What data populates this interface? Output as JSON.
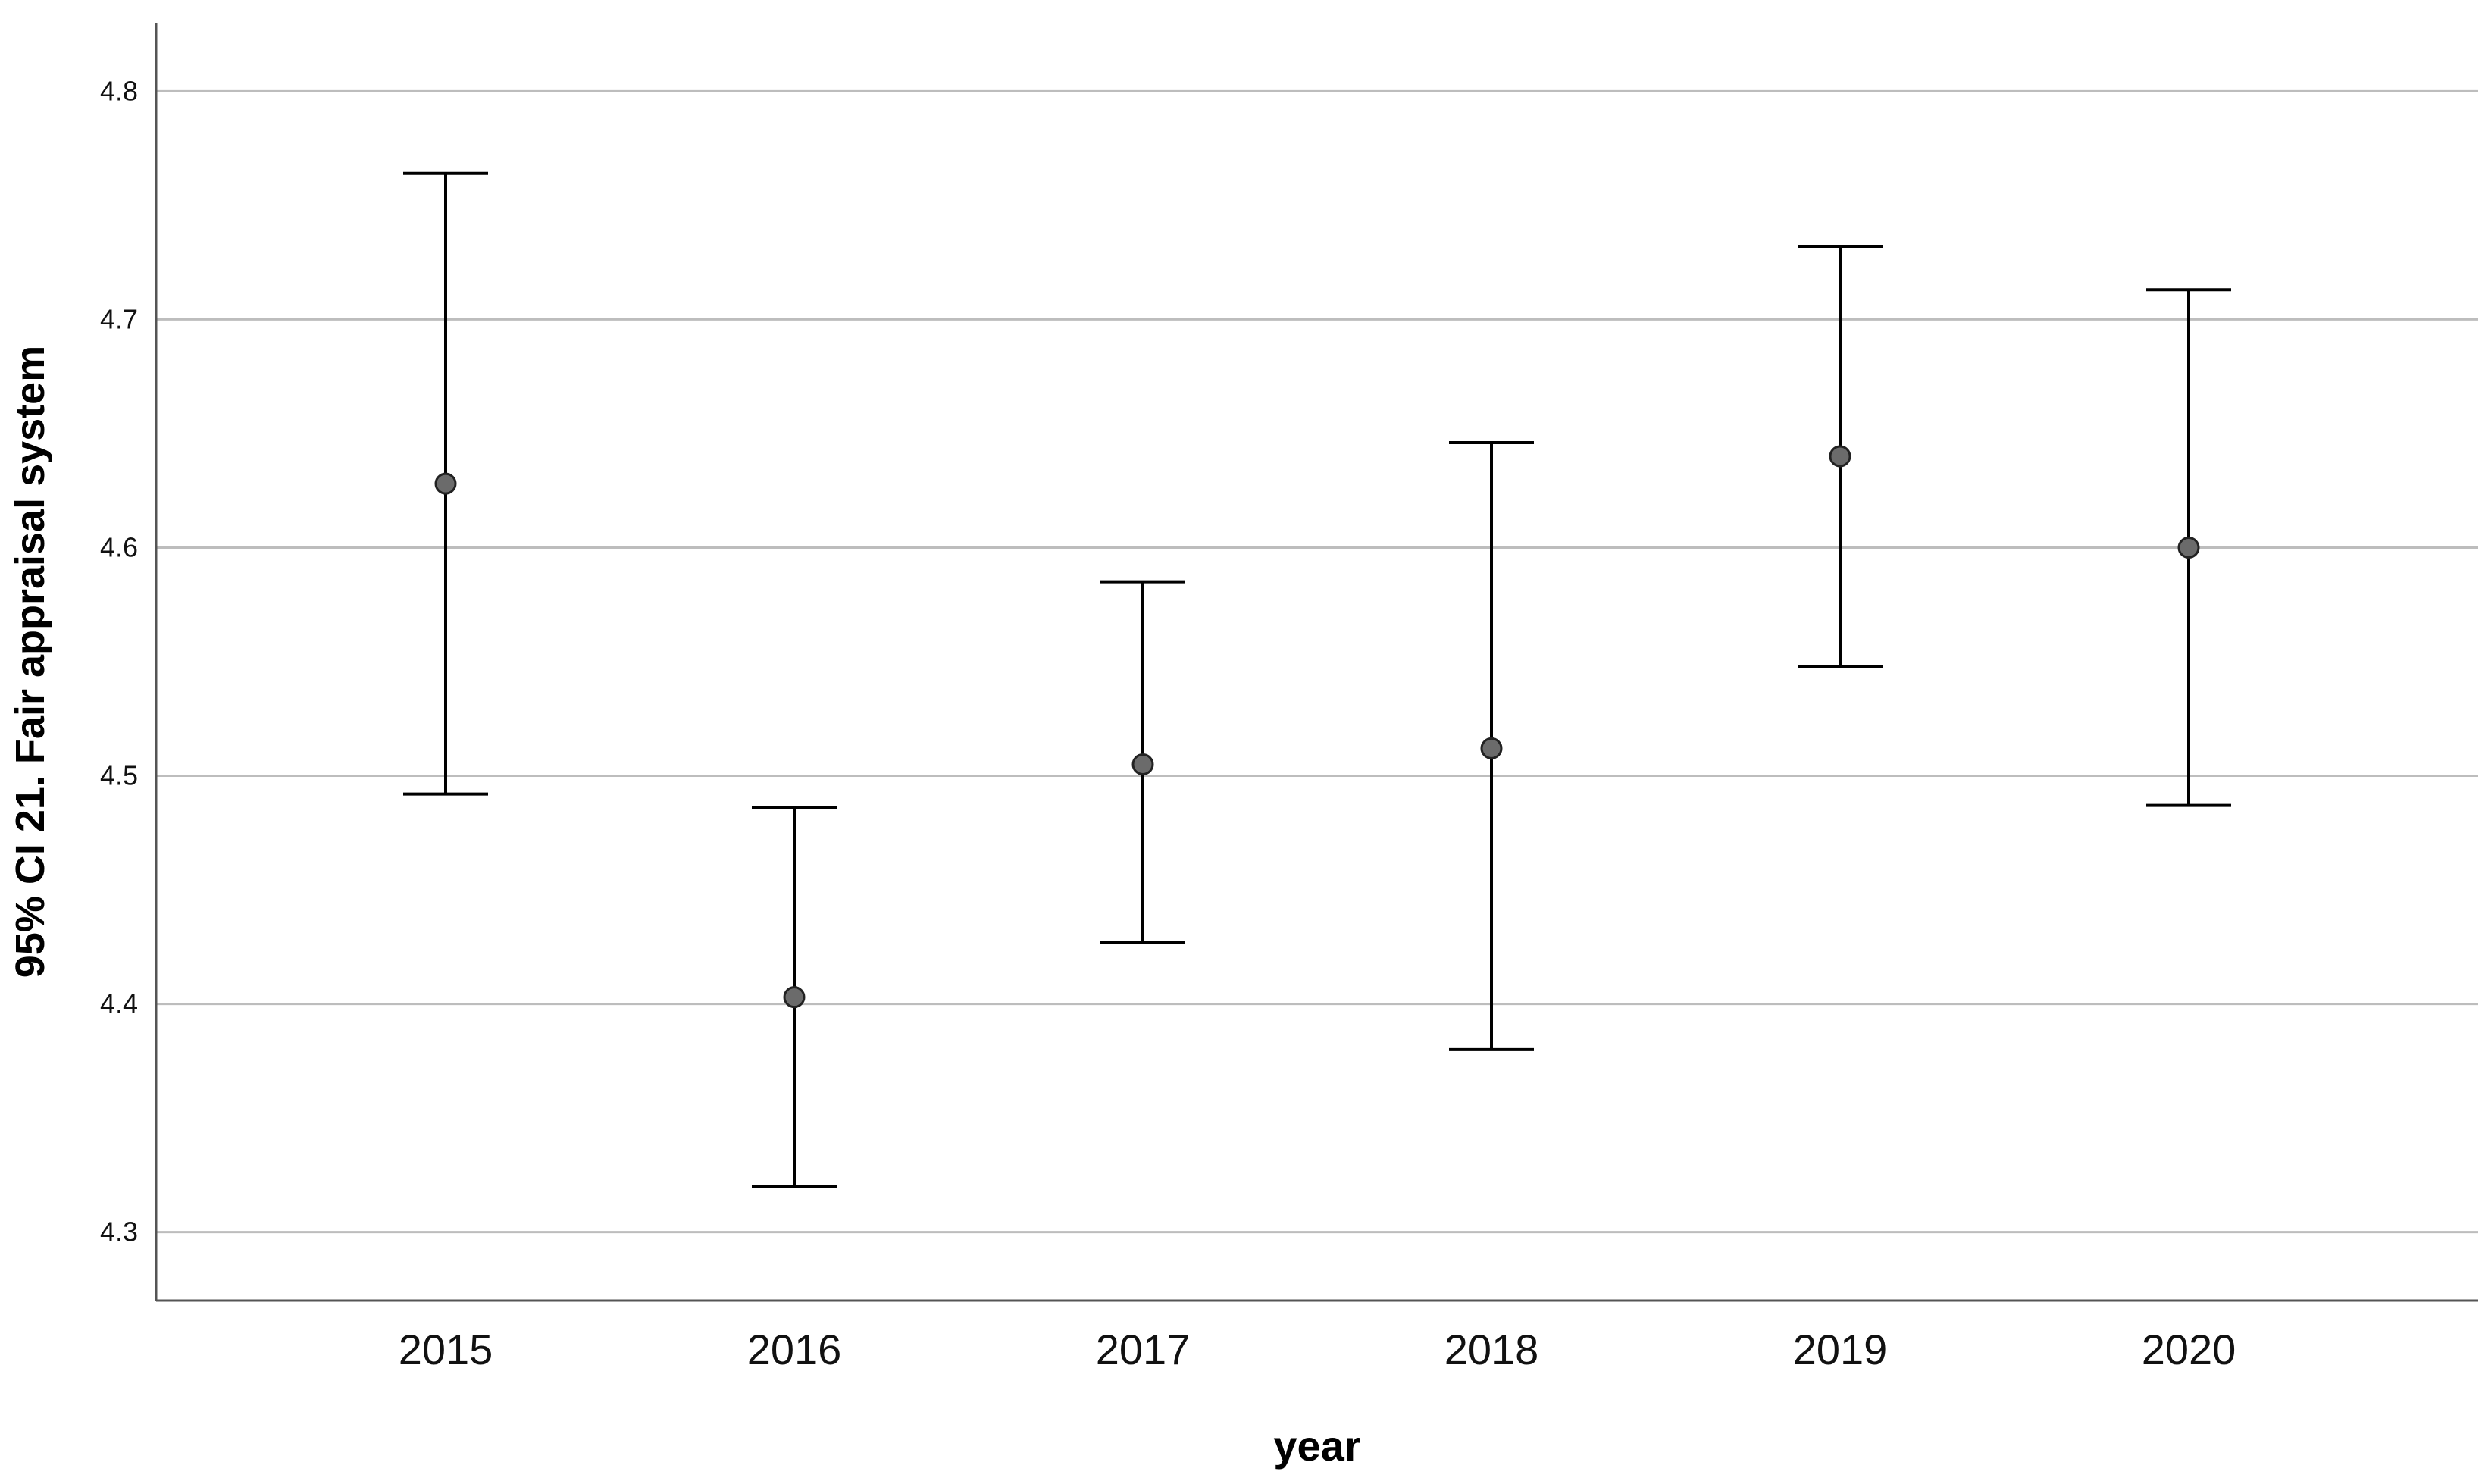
{
  "chart_data": {
    "type": "errorbar",
    "xlabel": "year",
    "ylabel": "95% CI 21. Fair appraisal system",
    "ylim": [
      4.27,
      4.83
    ],
    "yticks": [
      4.3,
      4.4,
      4.5,
      4.6,
      4.7,
      4.8
    ],
    "categories": [
      "2015",
      "2016",
      "2017",
      "2018",
      "2019",
      "2020"
    ],
    "means": [
      4.628,
      4.403,
      4.505,
      4.512,
      4.64,
      4.6
    ],
    "lower": [
      4.492,
      4.32,
      4.427,
      4.38,
      4.548,
      4.487
    ],
    "upper": [
      4.764,
      4.486,
      4.585,
      4.646,
      4.732,
      4.713
    ],
    "grid": true,
    "colors": {
      "marker": "#6b6b6b",
      "line": "#000000",
      "grid": "#bdbdbd"
    }
  }
}
